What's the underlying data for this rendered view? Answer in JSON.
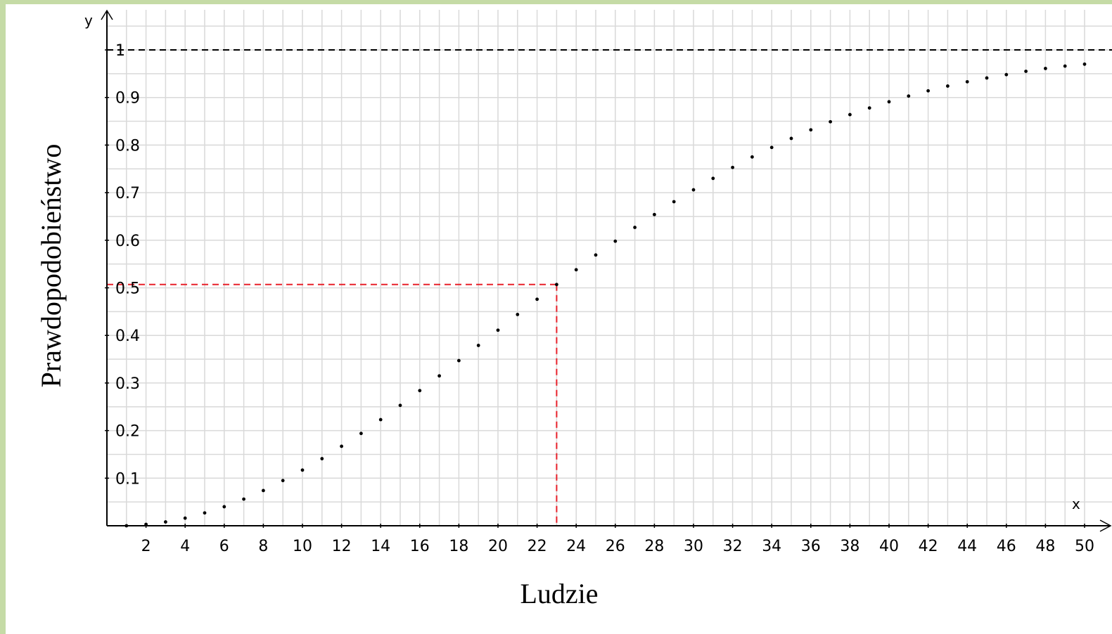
{
  "chart_data": {
    "type": "scatter",
    "xlabel": "Ludzie",
    "ylabel": "Prawdopodobieństwo",
    "x_axis_letter": "x",
    "y_axis_letter": "y",
    "xlim": [
      0,
      50.5
    ],
    "ylim": [
      0,
      1.08
    ],
    "grid": true,
    "x_ticks": [
      2,
      4,
      6,
      8,
      10,
      12,
      14,
      16,
      18,
      20,
      22,
      24,
      26,
      28,
      30,
      32,
      34,
      36,
      38,
      40,
      42,
      44,
      46,
      48,
      50
    ],
    "x_tick_labels": [
      "2",
      "4",
      "6",
      "8",
      "10",
      "12",
      "14",
      "16",
      "18",
      "20",
      "22",
      "24",
      "26",
      "28",
      "30",
      "32",
      "34",
      "36",
      "38",
      "40",
      "42",
      "44",
      "46",
      "48",
      "50"
    ],
    "y_ticks": [
      0.1,
      0.2,
      0.3,
      0.4,
      0.5,
      0.6,
      0.7,
      0.8,
      0.9,
      1
    ],
    "y_tick_labels": [
      "0.1",
      "0.2",
      "0.3",
      "0.4",
      "0.5",
      "0.6",
      "0.7",
      "0.8",
      "0.9",
      "1"
    ],
    "reference_line": {
      "y": 1,
      "style": "dashed",
      "color": "#000000"
    },
    "highlight": {
      "x": 23,
      "y": 0.507,
      "color": "#e8202a",
      "style": "dashed"
    },
    "series": [
      {
        "x": [
          1,
          2,
          3,
          4,
          5,
          6,
          7,
          8,
          9,
          10,
          11,
          12,
          13,
          14,
          15,
          16,
          17,
          18,
          19,
          20,
          21,
          22,
          23,
          24,
          25,
          26,
          27,
          28,
          29,
          30,
          31,
          32,
          33,
          34,
          35,
          36,
          37,
          38,
          39,
          40,
          41,
          42,
          43,
          44,
          45,
          46,
          47,
          48,
          49,
          50
        ],
        "values": [
          0,
          0.003,
          0.008,
          0.016,
          0.027,
          0.04,
          0.056,
          0.074,
          0.095,
          0.117,
          0.141,
          0.167,
          0.194,
          0.223,
          0.253,
          0.284,
          0.315,
          0.347,
          0.379,
          0.411,
          0.444,
          0.476,
          0.507,
          0.538,
          0.569,
          0.598,
          0.627,
          0.654,
          0.681,
          0.706,
          0.73,
          0.753,
          0.775,
          0.795,
          0.814,
          0.832,
          0.849,
          0.864,
          0.878,
          0.891,
          0.903,
          0.914,
          0.924,
          0.933,
          0.941,
          0.948,
          0.955,
          0.961,
          0.966,
          0.97
        ],
        "color": "#000000"
      }
    ]
  }
}
